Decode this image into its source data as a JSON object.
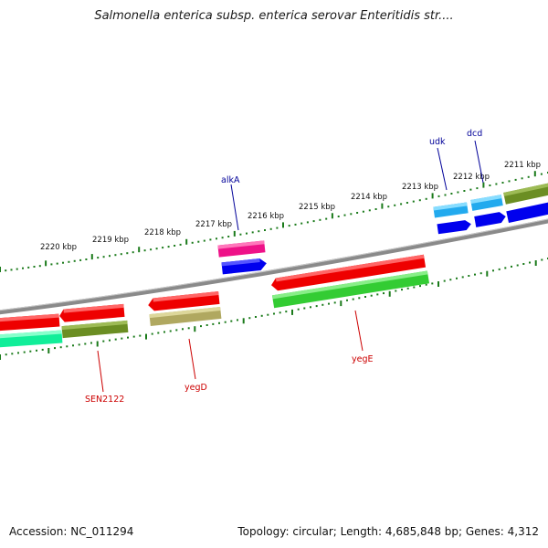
{
  "title": "Salmonella enterica subsp. enterica serovar Enteritidis str....",
  "footer": {
    "accession": "Accession: NC_011294",
    "topology": "Topology: circular; Length: 4,685,848 bp; Genes: 4,312"
  },
  "colors": {
    "backbone": "#8a8a8a",
    "tick": "#1a7a1a",
    "label_red": "#cc0000",
    "label_blue": "#000099"
  },
  "kbp_labels": [
    "2220 kbp",
    "2219 kbp",
    "2218 kbp",
    "2217 kbp",
    "2216 kbp",
    "2215 kbp",
    "2214 kbp",
    "2213 kbp",
    "2212 kbp",
    "2211 kbp"
  ],
  "gene_labels": {
    "alkA": "alkA",
    "udk": "udk",
    "dcd": "dcd",
    "yegE": "yegE",
    "yegD": "yegD",
    "SEN2122": "SEN2122"
  },
  "gene_colors": {
    "red": "#ee0000",
    "pink": "#ee1188",
    "blue": "#0000ee",
    "lightblue": "#22aaee",
    "green": "#33cc33",
    "olive": "#6b8e23",
    "khaki": "#b0a860",
    "teal": "#11ee99"
  }
}
